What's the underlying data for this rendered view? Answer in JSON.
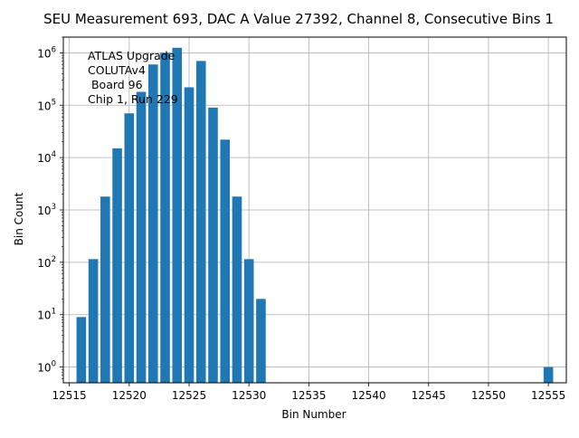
{
  "chart_data": {
    "type": "bar",
    "title": "SEU Measurement 693, DAC A Value 27392, Channel 8, Consecutive Bins 1",
    "xlabel": "Bin Number",
    "ylabel": "Bin Count",
    "yscale": "log",
    "xlim": [
      12514.5,
      12556.5
    ],
    "ylim": [
      0.5,
      2000000
    ],
    "grid": true,
    "bar_color": "#1f77b4",
    "bar_width": 0.8,
    "x_ticks": [
      12515,
      12520,
      12525,
      12530,
      12535,
      12540,
      12545,
      12550,
      12555
    ],
    "y_ticks": [
      {
        "value": 1,
        "base": "10",
        "exp": "0"
      },
      {
        "value": 10,
        "base": "10",
        "exp": "1"
      },
      {
        "value": 100,
        "base": "10",
        "exp": "2"
      },
      {
        "value": 1000,
        "base": "10",
        "exp": "3"
      },
      {
        "value": 10000,
        "base": "10",
        "exp": "4"
      },
      {
        "value": 100000,
        "base": "10",
        "exp": "5"
      },
      {
        "value": 1000000,
        "base": "10",
        "exp": "6"
      }
    ],
    "bars": [
      {
        "x": 12516,
        "y": 9
      },
      {
        "x": 12517,
        "y": 115
      },
      {
        "x": 12518,
        "y": 1800
      },
      {
        "x": 12519,
        "y": 15000
      },
      {
        "x": 12520,
        "y": 70000
      },
      {
        "x": 12521,
        "y": 180000
      },
      {
        "x": 12522,
        "y": 600000
      },
      {
        "x": 12523,
        "y": 1000000
      },
      {
        "x": 12524,
        "y": 1250000
      },
      {
        "x": 12525,
        "y": 220000
      },
      {
        "x": 12526,
        "y": 700000
      },
      {
        "x": 12527,
        "y": 90000
      },
      {
        "x": 12528,
        "y": 22000
      },
      {
        "x": 12529,
        "y": 1800
      },
      {
        "x": 12530,
        "y": 115
      },
      {
        "x": 12531,
        "y": 20
      },
      {
        "x": 12555,
        "y": 1
      }
    ],
    "annotation": [
      "ATLAS Upgrade",
      "COLUTAv4",
      " Board 96",
      "Chip 1, Run 229"
    ]
  }
}
